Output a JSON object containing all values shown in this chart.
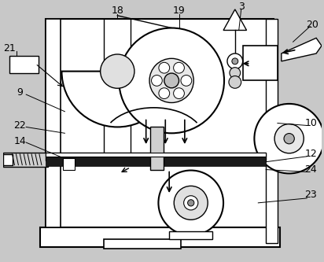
{
  "bg_color": "#c8c8c8",
  "line_color": "#000000",
  "figsize": [
    4.12,
    3.33
  ],
  "dpi": 100
}
